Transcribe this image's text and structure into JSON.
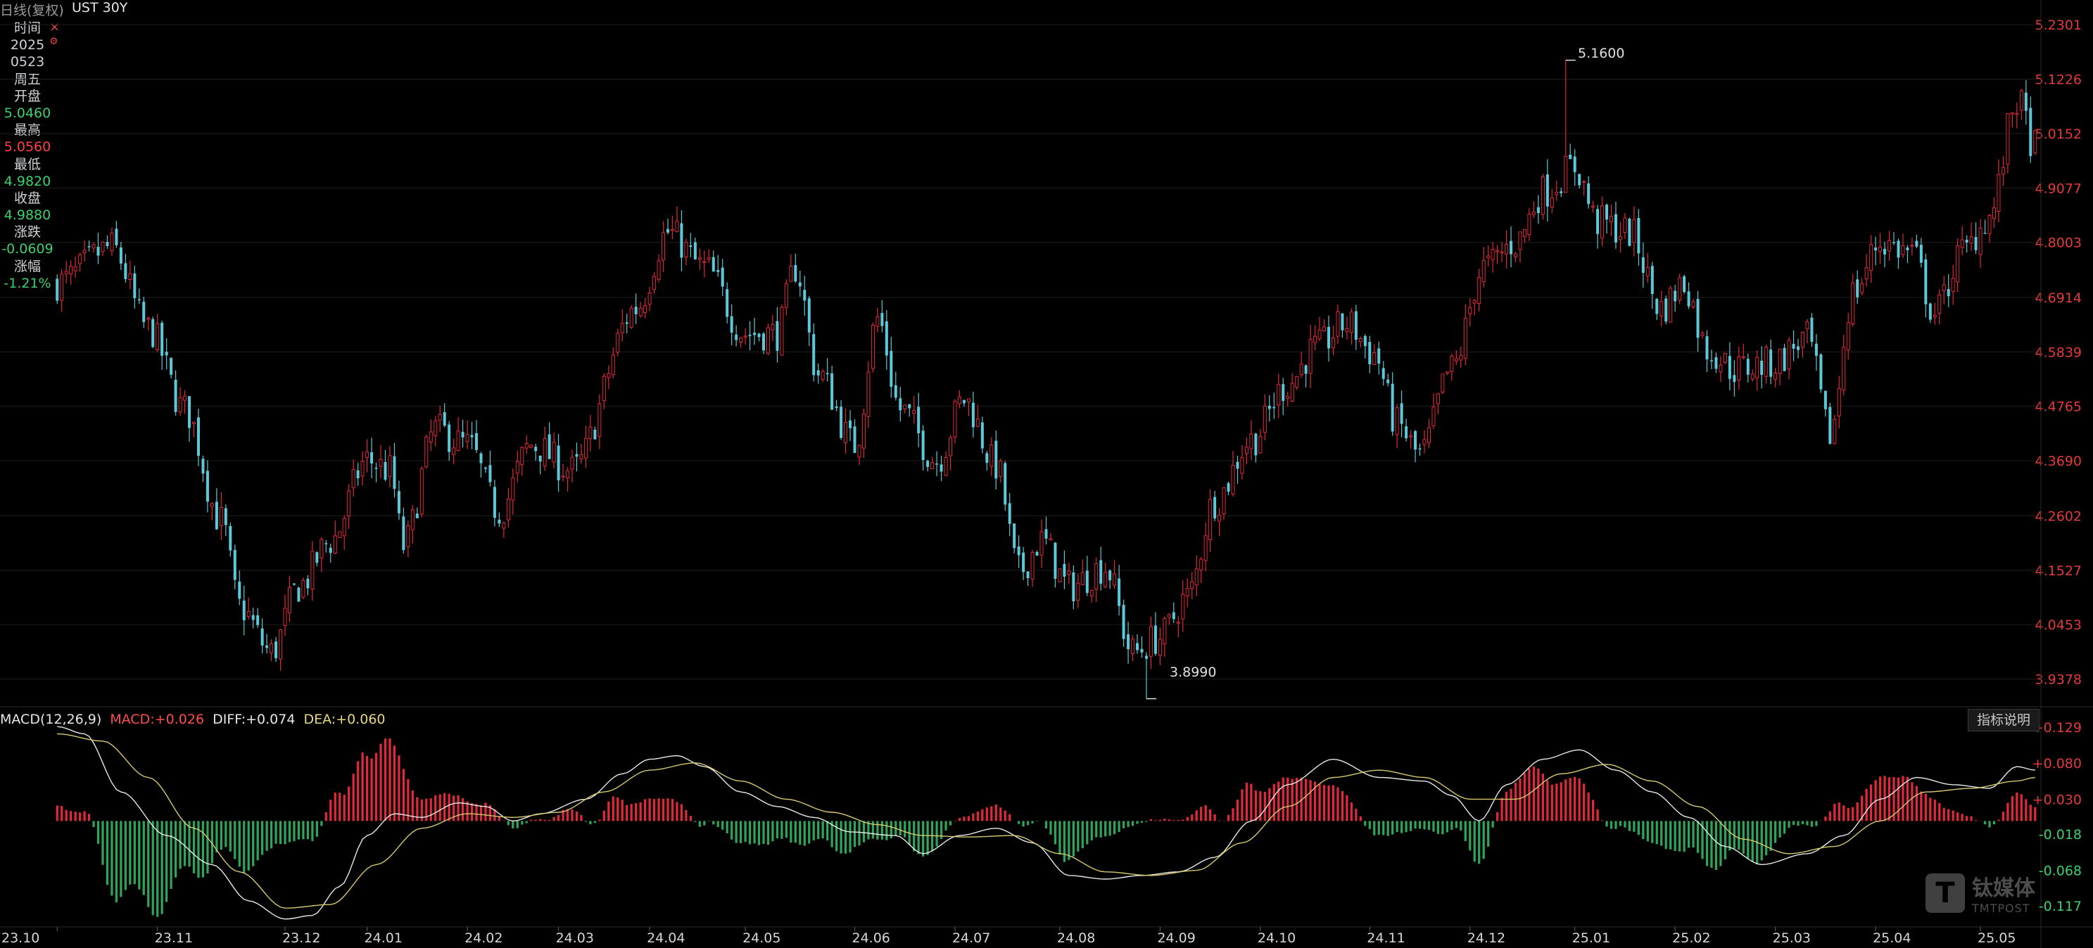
{
  "header": {
    "mode_label": "日线(复权)",
    "symbol": "UST 30Y"
  },
  "info_panel": {
    "time_label": "时间",
    "year": "2025",
    "date": "0523",
    "weekday": "周五",
    "open_label": "开盘",
    "open": "5.0460",
    "high_label": "最高",
    "high": "5.0560",
    "low_label": "最低",
    "low": "4.9820",
    "close_label": "收盘",
    "close": "4.9880",
    "change_label": "涨跌",
    "change": "-0.0609",
    "pct_label": "涨幅",
    "pct": "-1.21%"
  },
  "markers": {
    "max_label": "5.1600",
    "min_label": "3.8990"
  },
  "macd_header": {
    "name": "MACD(12,26,9)",
    "macd_label": "MACD:",
    "macd_value": "+0.026",
    "diff_label": "DIFF:",
    "diff_value": "+0.074",
    "dea_label": "DEA:",
    "dea_value": "+0.060"
  },
  "indicator_button": "指标说明",
  "watermark": {
    "cn": "钛媒体",
    "en": "TMTPOST"
  },
  "colors": {
    "up": "#e0293a",
    "down": "#5cc8d8",
    "grid": "#1e1e1e",
    "axis_text": "#e33a3a",
    "green_text": "#3bd16f",
    "red_text": "#ff4040",
    "diff_line": "#e8e8e8",
    "dea_line": "#d6c86e",
    "macd_label": "#ff4d4d",
    "dea_label": "#e8d77a"
  },
  "chart_data": [
    {
      "type": "candlestick",
      "title": "UST 30Y",
      "y_ticks": [
        "5.2301",
        "5.1226",
        "5.0152",
        "4.9077",
        "4.8003",
        "4.6914",
        "4.5839",
        "4.4765",
        "4.3690",
        "4.2602",
        "4.1527",
        "4.0453",
        "3.9378"
      ],
      "ylim": [
        3.89,
        5.24
      ],
      "x_ticks": [
        "23.10",
        "23.11",
        "23.12",
        "24.01",
        "24.02",
        "24.03",
        "24.04",
        "24.05",
        "24.06",
        "24.07",
        "24.08",
        "24.09",
        "24.10",
        "24.11",
        "24.12",
        "25.01",
        "25.02",
        "25.03",
        "25.04",
        "25.05"
      ],
      "x_tick_positions": [
        0,
        22,
        50,
        68,
        90,
        110,
        130,
        151,
        175,
        197,
        220,
        242,
        264,
        288,
        310,
        333,
        355,
        377,
        399,
        422
      ],
      "n_bars": 435,
      "anchors": [
        [
          0,
          4.72
        ],
        [
          12,
          4.79
        ],
        [
          20,
          4.63
        ],
        [
          28,
          4.47
        ],
        [
          36,
          4.25
        ],
        [
          40,
          4.08
        ],
        [
          47,
          3.99
        ],
        [
          53,
          4.12
        ],
        [
          60,
          4.21
        ],
        [
          68,
          4.37
        ],
        [
          73,
          4.35
        ],
        [
          76,
          4.2
        ],
        [
          83,
          4.43
        ],
        [
          90,
          4.4
        ],
        [
          97,
          4.27
        ],
        [
          104,
          4.4
        ],
        [
          113,
          4.35
        ],
        [
          127,
          4.67
        ],
        [
          134,
          4.82
        ],
        [
          142,
          4.75
        ],
        [
          151,
          4.62
        ],
        [
          158,
          4.62
        ],
        [
          162,
          4.75
        ],
        [
          167,
          4.54
        ],
        [
          175,
          4.4
        ],
        [
          180,
          4.65
        ],
        [
          185,
          4.47
        ],
        [
          193,
          4.37
        ],
        [
          199,
          4.49
        ],
        [
          206,
          4.36
        ],
        [
          211,
          4.15
        ],
        [
          216,
          4.21
        ],
        [
          222,
          4.12
        ],
        [
          230,
          4.16
        ],
        [
          236,
          3.99
        ],
        [
          242,
          4.02
        ],
        [
          248,
          4.1
        ],
        [
          254,
          4.29
        ],
        [
          262,
          4.41
        ],
        [
          270,
          4.52
        ],
        [
          276,
          4.59
        ],
        [
          283,
          4.64
        ],
        [
          289,
          4.58
        ],
        [
          294,
          4.44
        ],
        [
          299,
          4.38
        ],
        [
          306,
          4.55
        ],
        [
          313,
          4.75
        ],
        [
          320,
          4.8
        ],
        [
          326,
          4.9
        ],
        [
          333,
          4.95
        ],
        [
          338,
          4.84
        ],
        [
          345,
          4.82
        ],
        [
          352,
          4.67
        ],
        [
          357,
          4.72
        ],
        [
          362,
          4.59
        ],
        [
          368,
          4.55
        ],
        [
          376,
          4.56
        ],
        [
          384,
          4.61
        ],
        [
          389,
          4.42
        ],
        [
          394,
          4.7
        ],
        [
          400,
          4.8
        ],
        [
          407,
          4.78
        ],
        [
          412,
          4.66
        ],
        [
          418,
          4.78
        ],
        [
          424,
          4.85
        ],
        [
          430,
          5.08
        ],
        [
          434,
          4.99
        ]
      ],
      "max_marker": {
        "bar": 331,
        "value": 5.16
      },
      "min_marker": {
        "bar": 239,
        "value": 3.899
      }
    },
    {
      "type": "macd",
      "title": "MACD(12,26,9)",
      "y_ticks": [
        "+0.129",
        "+0.080",
        "+0.030",
        "-0.018",
        "-0.068",
        "-0.117"
      ],
      "ylim": [
        -0.14,
        0.135
      ],
      "diff_anchors": [
        [
          0,
          0.13
        ],
        [
          6,
          0.12
        ],
        [
          14,
          0.04
        ],
        [
          24,
          -0.02
        ],
        [
          34,
          -0.06
        ],
        [
          42,
          -0.11
        ],
        [
          50,
          -0.135
        ],
        [
          56,
          -0.13
        ],
        [
          62,
          -0.09
        ],
        [
          68,
          -0.02
        ],
        [
          74,
          0.01
        ],
        [
          80,
          0.005
        ],
        [
          88,
          0.025
        ],
        [
          94,
          0.02
        ],
        [
          100,
          0.0
        ],
        [
          106,
          0.01
        ],
        [
          116,
          0.03
        ],
        [
          124,
          0.065
        ],
        [
          130,
          0.085
        ],
        [
          136,
          0.09
        ],
        [
          142,
          0.075
        ],
        [
          150,
          0.04
        ],
        [
          158,
          0.02
        ],
        [
          166,
          0.005
        ],
        [
          174,
          -0.015
        ],
        [
          184,
          -0.02
        ],
        [
          190,
          -0.045
        ],
        [
          198,
          -0.02
        ],
        [
          206,
          -0.01
        ],
        [
          214,
          -0.03
        ],
        [
          222,
          -0.075
        ],
        [
          230,
          -0.08
        ],
        [
          238,
          -0.075
        ],
        [
          246,
          -0.07
        ],
        [
          254,
          -0.05
        ],
        [
          262,
          0.0
        ],
        [
          270,
          0.05
        ],
        [
          280,
          0.085
        ],
        [
          290,
          0.06
        ],
        [
          300,
          0.055
        ],
        [
          306,
          0.035
        ],
        [
          312,
          0.0
        ],
        [
          318,
          0.05
        ],
        [
          326,
          0.085
        ],
        [
          334,
          0.098
        ],
        [
          342,
          0.07
        ],
        [
          350,
          0.04
        ],
        [
          358,
          0.005
        ],
        [
          366,
          -0.035
        ],
        [
          374,
          -0.06
        ],
        [
          384,
          -0.045
        ],
        [
          392,
          -0.02
        ],
        [
          400,
          0.03
        ],
        [
          408,
          0.06
        ],
        [
          416,
          0.05
        ],
        [
          424,
          0.045
        ],
        [
          430,
          0.075
        ],
        [
          434,
          0.07
        ]
      ],
      "dea_anchors": [
        [
          0,
          0.12
        ],
        [
          10,
          0.11
        ],
        [
          20,
          0.06
        ],
        [
          30,
          -0.01
        ],
        [
          40,
          -0.07
        ],
        [
          50,
          -0.12
        ],
        [
          60,
          -0.115
        ],
        [
          70,
          -0.06
        ],
        [
          80,
          -0.01
        ],
        [
          90,
          0.01
        ],
        [
          100,
          0.005
        ],
        [
          110,
          0.012
        ],
        [
          120,
          0.04
        ],
        [
          130,
          0.07
        ],
        [
          140,
          0.08
        ],
        [
          150,
          0.055
        ],
        [
          160,
          0.03
        ],
        [
          170,
          0.012
        ],
        [
          180,
          -0.005
        ],
        [
          190,
          -0.02
        ],
        [
          200,
          -0.022
        ],
        [
          210,
          -0.02
        ],
        [
          220,
          -0.045
        ],
        [
          230,
          -0.07
        ],
        [
          240,
          -0.075
        ],
        [
          250,
          -0.068
        ],
        [
          260,
          -0.03
        ],
        [
          270,
          0.02
        ],
        [
          280,
          0.06
        ],
        [
          290,
          0.07
        ],
        [
          300,
          0.06
        ],
        [
          310,
          0.03
        ],
        [
          320,
          0.03
        ],
        [
          330,
          0.065
        ],
        [
          340,
          0.078
        ],
        [
          350,
          0.055
        ],
        [
          360,
          0.02
        ],
        [
          370,
          -0.025
        ],
        [
          380,
          -0.045
        ],
        [
          390,
          -0.035
        ],
        [
          400,
          0.0
        ],
        [
          410,
          0.04
        ],
        [
          420,
          0.045
        ],
        [
          430,
          0.055
        ],
        [
          434,
          0.06
        ]
      ]
    }
  ]
}
